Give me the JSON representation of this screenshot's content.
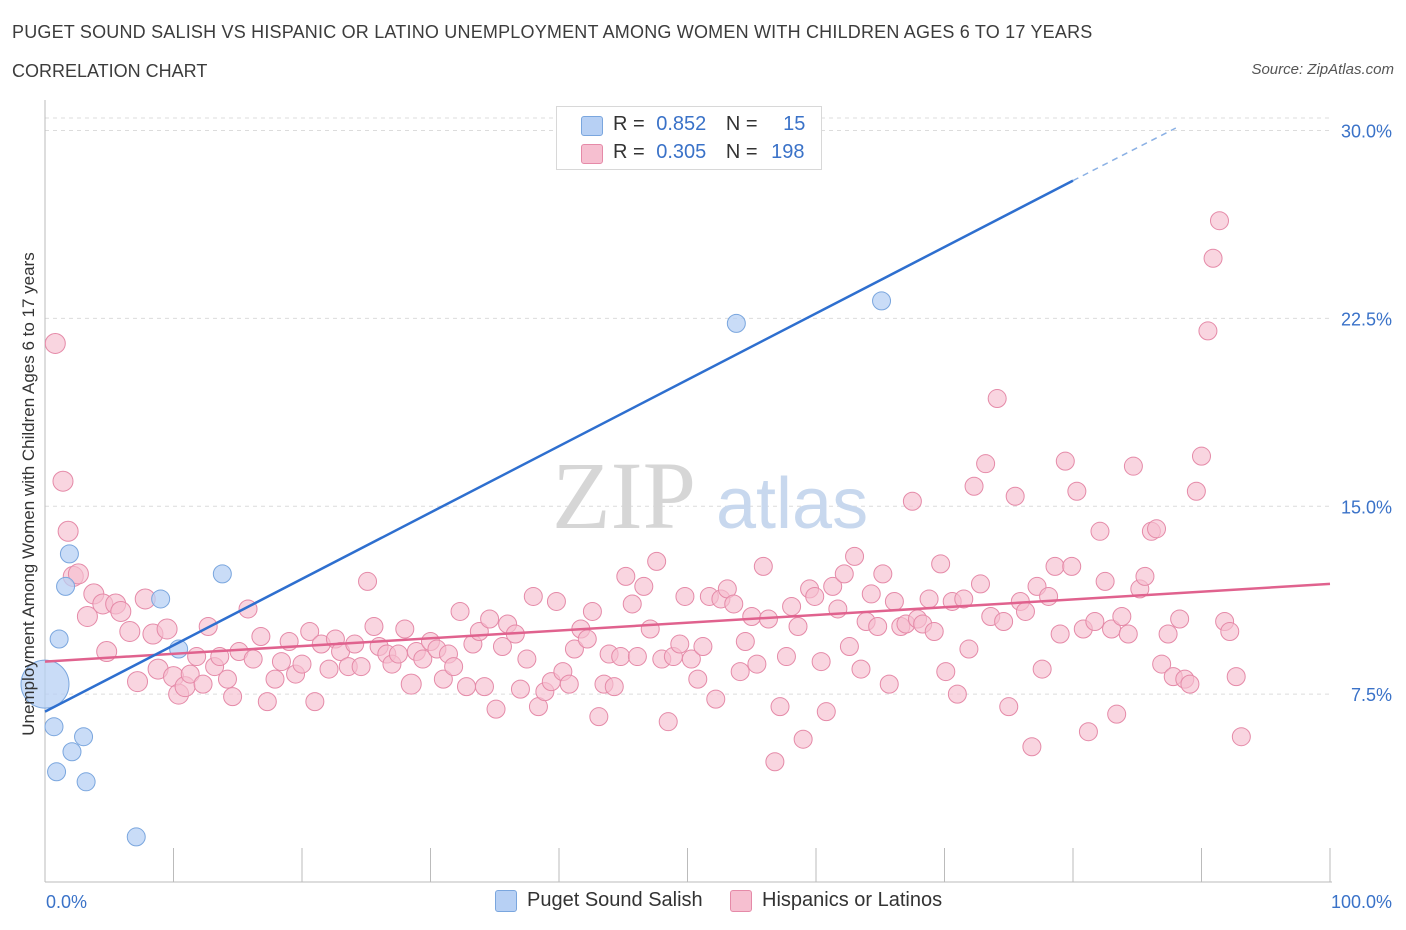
{
  "title": "PUGET SOUND SALISH VS HISPANIC OR LATINO UNEMPLOYMENT AMONG WOMEN WITH CHILDREN AGES 6 TO 17 YEARS",
  "subtitle": "CORRELATION CHART",
  "source": "Source: ZipAtlas.com",
  "watermark": {
    "zip": "ZIP",
    "atlas": "atlas"
  },
  "legend": {
    "r_label": "R =",
    "n_label": "N =",
    "rows": [
      {
        "r": "0.852",
        "n": "15"
      },
      {
        "r": "0.305",
        "n": "198"
      }
    ]
  },
  "colors": {
    "blue_fill": "#b7d0f4",
    "blue_stroke": "#7aa6de",
    "blue_line": "#2e6fcf",
    "pink_fill": "#f6bfd0",
    "pink_stroke": "#e58aa8",
    "pink_line": "#e0628e",
    "axis_label": "#3a72c8",
    "grid": "#dcdcdc"
  },
  "chart_data": {
    "type": "scatter",
    "title": "PUGET SOUND SALISH VS HISPANIC OR LATINO UNEMPLOYMENT AMONG WOMEN WITH CHILDREN AGES 6 TO 17 YEARS",
    "xlabel": "",
    "ylabel": "Unemployment Among Women with Children Ages 6 to 17 years",
    "xlim": [
      0,
      100
    ],
    "ylim": [
      0,
      30.5
    ],
    "x_tick_labels": [
      "0.0%",
      "100.0%"
    ],
    "y_ticks": [
      7.5,
      15.0,
      22.5,
      30.0
    ],
    "y_tick_labels": [
      "7.5%",
      "15.0%",
      "22.5%",
      "30.0%"
    ],
    "grid": true,
    "legend_placement": "bottom",
    "series": [
      {
        "name": "Puget Sound Salish",
        "color": "#b7d0f4",
        "r": 0.852,
        "n": 15,
        "trend": {
          "x0": 0,
          "y0": 6.8,
          "x1": 80,
          "y1": 28.0,
          "dashed_to_x": 88,
          "dashed_to_y": 30.1
        },
        "points": [
          [
            0.0,
            7.9,
            24
          ],
          [
            0.7,
            6.2,
            9
          ],
          [
            0.9,
            4.4,
            9
          ],
          [
            1.1,
            9.7,
            9
          ],
          [
            1.6,
            11.8,
            9
          ],
          [
            1.9,
            13.1,
            9
          ],
          [
            2.1,
            5.2,
            9
          ],
          [
            3.0,
            5.8,
            9
          ],
          [
            3.2,
            4.0,
            9
          ],
          [
            7.1,
            1.8,
            9
          ],
          [
            9.0,
            11.3,
            9
          ],
          [
            10.4,
            9.3,
            9
          ],
          [
            13.8,
            12.3,
            9
          ],
          [
            53.8,
            22.3,
            9
          ],
          [
            65.1,
            23.2,
            9
          ]
        ]
      },
      {
        "name": "Hispanics or Latinos",
        "color": "#f6bfd0",
        "r": 0.305,
        "n": 198,
        "trend": {
          "x0": 0,
          "y0": 8.8,
          "x1": 100,
          "y1": 11.9
        },
        "points": [
          [
            0.8,
            21.5,
            10
          ],
          [
            1.4,
            16.0,
            10
          ],
          [
            1.8,
            14.0,
            10
          ],
          [
            2.2,
            12.2,
            10
          ],
          [
            2.6,
            12.3,
            10
          ],
          [
            3.3,
            10.6,
            10
          ],
          [
            3.8,
            11.5,
            10
          ],
          [
            4.5,
            11.1,
            10
          ],
          [
            4.8,
            9.2,
            10
          ],
          [
            5.5,
            11.1,
            10
          ],
          [
            5.9,
            10.8,
            10
          ],
          [
            6.6,
            10.0,
            10
          ],
          [
            7.2,
            8.0,
            10
          ],
          [
            7.8,
            11.3,
            10
          ],
          [
            8.4,
            9.9,
            10
          ],
          [
            8.8,
            8.5,
            10
          ],
          [
            9.5,
            10.1,
            10
          ],
          [
            10.0,
            8.2,
            10
          ],
          [
            10.4,
            7.5,
            10
          ],
          [
            10.9,
            7.8,
            10
          ],
          [
            11.3,
            8.3,
            9
          ],
          [
            11.8,
            9.0,
            9
          ],
          [
            12.3,
            7.9,
            9
          ],
          [
            12.7,
            10.2,
            9
          ],
          [
            13.2,
            8.6,
            9
          ],
          [
            13.6,
            9.0,
            9
          ],
          [
            14.2,
            8.1,
            9
          ],
          [
            14.6,
            7.4,
            9
          ],
          [
            15.1,
            9.2,
            9
          ],
          [
            15.8,
            10.9,
            9
          ],
          [
            16.2,
            8.9,
            9
          ],
          [
            16.8,
            9.8,
            9
          ],
          [
            17.3,
            7.2,
            9
          ],
          [
            17.9,
            8.1,
            9
          ],
          [
            18.4,
            8.8,
            9
          ],
          [
            19.0,
            9.6,
            9
          ],
          [
            19.5,
            8.3,
            9
          ],
          [
            20.0,
            8.7,
            9
          ],
          [
            20.6,
            10.0,
            9
          ],
          [
            21.0,
            7.2,
            9
          ],
          [
            21.5,
            9.5,
            9
          ],
          [
            22.1,
            8.5,
            9
          ],
          [
            22.6,
            9.7,
            9
          ],
          [
            23.0,
            9.2,
            9
          ],
          [
            23.6,
            8.6,
            9
          ],
          [
            24.1,
            9.5,
            9
          ],
          [
            24.6,
            8.6,
            9
          ],
          [
            25.1,
            12.0,
            9
          ],
          [
            25.6,
            10.2,
            9
          ],
          [
            26.0,
            9.4,
            9
          ],
          [
            26.6,
            9.1,
            9
          ],
          [
            27.0,
            8.7,
            9
          ],
          [
            27.5,
            9.1,
            9
          ],
          [
            28.0,
            10.1,
            9
          ],
          [
            28.5,
            7.9,
            10
          ],
          [
            28.9,
            9.2,
            9
          ],
          [
            29.4,
            8.9,
            9
          ],
          [
            30.0,
            9.6,
            9
          ],
          [
            30.5,
            9.3,
            9
          ],
          [
            31.0,
            8.1,
            9
          ],
          [
            31.4,
            9.1,
            9
          ],
          [
            31.8,
            8.6,
            9
          ],
          [
            32.3,
            10.8,
            9
          ],
          [
            32.8,
            7.8,
            9
          ],
          [
            33.3,
            9.5,
            9
          ],
          [
            33.8,
            10.0,
            9
          ],
          [
            34.2,
            7.8,
            9
          ],
          [
            34.6,
            10.5,
            9
          ],
          [
            35.1,
            6.9,
            9
          ],
          [
            35.6,
            9.4,
            9
          ],
          [
            36.0,
            10.3,
            9
          ],
          [
            36.6,
            9.9,
            9
          ],
          [
            37.0,
            7.7,
            9
          ],
          [
            37.5,
            8.9,
            9
          ],
          [
            38.0,
            11.4,
            9
          ],
          [
            38.4,
            7.0,
            9
          ],
          [
            38.9,
            7.6,
            9
          ],
          [
            39.4,
            8.0,
            9
          ],
          [
            39.8,
            11.2,
            9
          ],
          [
            40.3,
            8.4,
            9
          ],
          [
            40.8,
            7.9,
            9
          ],
          [
            41.2,
            9.3,
            9
          ],
          [
            41.7,
            10.1,
            9
          ],
          [
            42.2,
            9.7,
            9
          ],
          [
            42.6,
            10.8,
            9
          ],
          [
            43.1,
            6.6,
            9
          ],
          [
            43.5,
            7.9,
            9
          ],
          [
            43.9,
            9.1,
            9
          ],
          [
            44.3,
            7.8,
            9
          ],
          [
            44.8,
            9.0,
            9
          ],
          [
            45.2,
            12.2,
            9
          ],
          [
            45.7,
            11.1,
            9
          ],
          [
            46.1,
            9.0,
            9
          ],
          [
            46.6,
            11.8,
            9
          ],
          [
            47.1,
            10.1,
            9
          ],
          [
            47.6,
            12.8,
            9
          ],
          [
            48.0,
            8.9,
            9
          ],
          [
            48.5,
            6.4,
            9
          ],
          [
            48.9,
            9.0,
            9
          ],
          [
            49.4,
            9.5,
            9
          ],
          [
            49.8,
            11.4,
            9
          ],
          [
            50.3,
            8.9,
            9
          ],
          [
            50.8,
            8.1,
            9
          ],
          [
            51.2,
            9.4,
            9
          ],
          [
            51.7,
            11.4,
            9
          ],
          [
            52.2,
            7.3,
            9
          ],
          [
            52.6,
            11.3,
            9
          ],
          [
            53.1,
            11.7,
            9
          ],
          [
            53.6,
            11.1,
            9
          ],
          [
            54.1,
            8.4,
            9
          ],
          [
            54.5,
            9.6,
            9
          ],
          [
            55.0,
            10.6,
            9
          ],
          [
            55.4,
            8.7,
            9
          ],
          [
            55.9,
            12.6,
            9
          ],
          [
            56.3,
            10.5,
            9
          ],
          [
            56.8,
            4.8,
            9
          ],
          [
            57.2,
            7.0,
            9
          ],
          [
            57.7,
            9.0,
            9
          ],
          [
            58.1,
            11.0,
            9
          ],
          [
            58.6,
            10.2,
            9
          ],
          [
            59.0,
            5.7,
            9
          ],
          [
            59.5,
            11.7,
            9
          ],
          [
            59.9,
            11.4,
            9
          ],
          [
            60.4,
            8.8,
            9
          ],
          [
            60.8,
            6.8,
            9
          ],
          [
            61.3,
            11.8,
            9
          ],
          [
            61.7,
            10.9,
            9
          ],
          [
            62.2,
            12.3,
            9
          ],
          [
            62.6,
            9.4,
            9
          ],
          [
            63.0,
            13.0,
            9
          ],
          [
            63.5,
            8.5,
            9
          ],
          [
            63.9,
            10.4,
            9
          ],
          [
            64.3,
            11.5,
            9
          ],
          [
            64.8,
            10.2,
            9
          ],
          [
            65.2,
            12.3,
            9
          ],
          [
            65.7,
            7.9,
            9
          ],
          [
            66.1,
            11.2,
            9
          ],
          [
            66.6,
            10.2,
            9
          ],
          [
            67.0,
            10.3,
            9
          ],
          [
            67.5,
            15.2,
            9
          ],
          [
            67.9,
            10.5,
            9
          ],
          [
            68.3,
            10.3,
            9
          ],
          [
            68.8,
            11.3,
            9
          ],
          [
            69.2,
            10.0,
            9
          ],
          [
            69.7,
            12.7,
            9
          ],
          [
            70.1,
            8.4,
            9
          ],
          [
            70.6,
            11.2,
            9
          ],
          [
            71.0,
            7.5,
            9
          ],
          [
            71.5,
            11.3,
            9
          ],
          [
            71.9,
            9.3,
            9
          ],
          [
            72.3,
            15.8,
            9
          ],
          [
            72.8,
            11.9,
            9
          ],
          [
            73.2,
            16.7,
            9
          ],
          [
            73.6,
            10.6,
            9
          ],
          [
            74.1,
            19.3,
            9
          ],
          [
            74.6,
            10.4,
            9
          ],
          [
            75.0,
            7.0,
            9
          ],
          [
            75.5,
            15.4,
            9
          ],
          [
            75.9,
            11.2,
            9
          ],
          [
            76.3,
            10.8,
            9
          ],
          [
            76.8,
            5.4,
            9
          ],
          [
            77.2,
            11.8,
            9
          ],
          [
            77.6,
            8.5,
            9
          ],
          [
            78.1,
            11.4,
            9
          ],
          [
            78.6,
            12.6,
            9
          ],
          [
            79.0,
            9.9,
            9
          ],
          [
            79.4,
            16.8,
            9
          ],
          [
            79.9,
            12.6,
            9
          ],
          [
            80.3,
            15.6,
            9
          ],
          [
            80.8,
            10.1,
            9
          ],
          [
            81.2,
            6.0,
            9
          ],
          [
            81.7,
            10.4,
            9
          ],
          [
            82.1,
            14.0,
            9
          ],
          [
            82.5,
            12.0,
            9
          ],
          [
            83.0,
            10.1,
            9
          ],
          [
            83.4,
            6.7,
            9
          ],
          [
            83.8,
            10.6,
            9
          ],
          [
            84.3,
            9.9,
            9
          ],
          [
            84.7,
            16.6,
            9
          ],
          [
            85.2,
            11.7,
            9
          ],
          [
            85.6,
            12.2,
            9
          ],
          [
            86.1,
            14.0,
            9
          ],
          [
            86.5,
            14.1,
            9
          ],
          [
            86.9,
            8.7,
            9
          ],
          [
            87.4,
            9.9,
            9
          ],
          [
            87.8,
            8.2,
            9
          ],
          [
            88.3,
            10.5,
            9
          ],
          [
            88.7,
            8.1,
            9
          ],
          [
            89.1,
            7.9,
            9
          ],
          [
            89.6,
            15.6,
            9
          ],
          [
            90.0,
            17.0,
            9
          ],
          [
            90.5,
            22.0,
            9
          ],
          [
            90.9,
            24.9,
            9
          ],
          [
            91.4,
            26.4,
            9
          ],
          [
            91.8,
            10.4,
            9
          ],
          [
            92.2,
            10.0,
            9
          ],
          [
            92.7,
            8.2,
            9
          ],
          [
            93.1,
            5.8,
            9
          ]
        ]
      }
    ]
  }
}
